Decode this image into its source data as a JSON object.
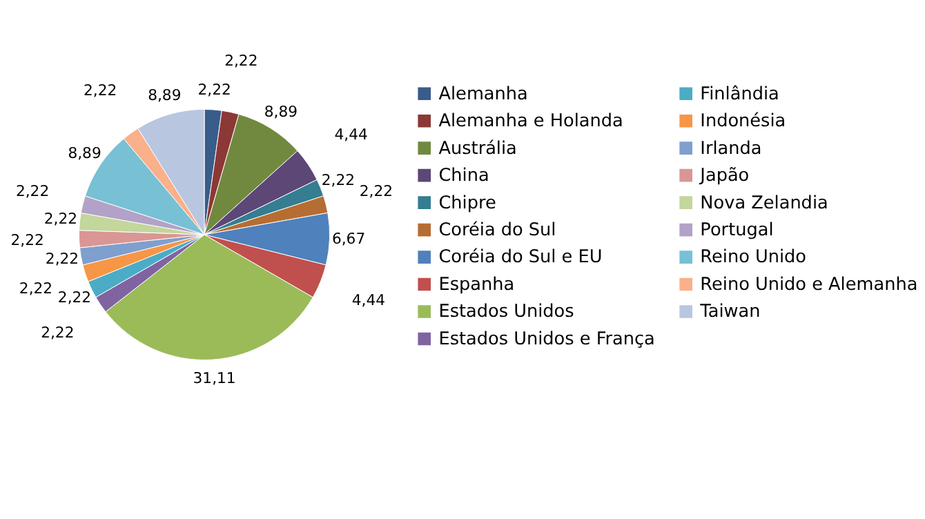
{
  "chart_data": {
    "type": "pie",
    "categories": [
      "Alemanha",
      "Alemanha e Holanda",
      "Austrália",
      "China",
      "Chipre",
      "Coréia do Sul",
      "Coréia do Sul e EU",
      "Espanha",
      "Estados Unidos",
      "Estados Unidos e França",
      "Finlândia",
      "Indonésia",
      "Irlanda",
      "Japão",
      "Nova Zelandia",
      "Portugal",
      "Reino Unido",
      "Reino Unido e Alemanha",
      "Taiwan"
    ],
    "values": [
      2.22,
      2.22,
      8.89,
      4.44,
      2.22,
      2.22,
      6.67,
      4.44,
      31.11,
      2.22,
      2.22,
      2.22,
      2.22,
      2.22,
      2.22,
      2.22,
      8.89,
      2.22,
      8.89
    ],
    "value_labels": [
      "2,22",
      "2,22",
      "8,89",
      "4,44",
      "2,22",
      "2,22",
      "6,67",
      "4,44",
      "31,11",
      "2,22",
      "2,22",
      "2,22",
      "2,22",
      "2,22",
      "2,22",
      "2,22",
      "8,89",
      "2,22",
      "8,89"
    ],
    "colors": [
      "#385d8a",
      "#8c3836",
      "#71893f",
      "#5c4776",
      "#357d91",
      "#b66d31",
      "#4f81bd",
      "#c0504d",
      "#9bbb59",
      "#8064a2",
      "#4bacc6",
      "#f79646",
      "#7f9fcf",
      "#d99694",
      "#c3d69b",
      "#b3a2c7",
      "#78c0d4",
      "#fab08a",
      "#b9c6e0"
    ],
    "legend": "right"
  }
}
